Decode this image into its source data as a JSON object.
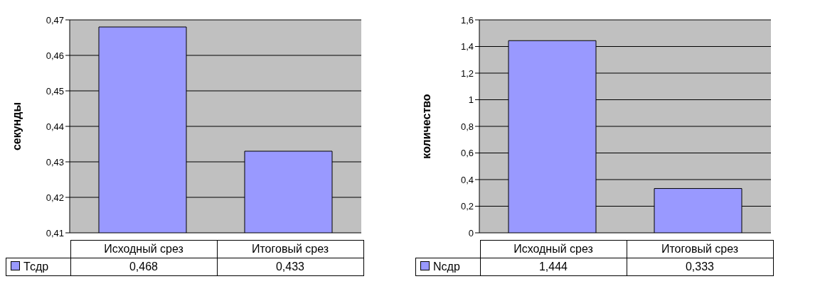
{
  "chart_data": [
    {
      "type": "bar",
      "ylabel": "секунды",
      "categories": [
        "Исходный срез",
        "Итоговый срез"
      ],
      "series": [
        {
          "name": "Тсдр",
          "color": "#9999ff",
          "values": [
            0.468,
            0.433
          ],
          "value_labels": [
            "0,468",
            "0,433"
          ]
        }
      ],
      "ylim": [
        0.41,
        0.47
      ],
      "yticks": [
        {
          "value": 0.41,
          "label": "0,41"
        },
        {
          "value": 0.42,
          "label": "0,42"
        },
        {
          "value": 0.43,
          "label": "0,43"
        },
        {
          "value": 0.44,
          "label": "0,44"
        },
        {
          "value": 0.45,
          "label": "0,45"
        },
        {
          "value": 0.46,
          "label": "0,46"
        },
        {
          "value": 0.47,
          "label": "0,47"
        }
      ],
      "grid": "y",
      "legend": "bottom left"
    },
    {
      "type": "bar",
      "ylabel": "количество",
      "categories": [
        "Исходный срез",
        "Итоговый срез"
      ],
      "series": [
        {
          "name": "Nсдр",
          "color": "#9999ff",
          "values": [
            1.444,
            0.333
          ],
          "value_labels": [
            "1,444",
            "0,333"
          ]
        }
      ],
      "ylim": [
        0,
        1.6
      ],
      "yticks": [
        {
          "value": 0,
          "label": "0"
        },
        {
          "value": 0.2,
          "label": "0,2"
        },
        {
          "value": 0.4,
          "label": "0,4"
        },
        {
          "value": 0.6,
          "label": "0,6"
        },
        {
          "value": 0.8,
          "label": "0,8"
        },
        {
          "value": 1,
          "label": "1"
        },
        {
          "value": 1.2,
          "label": "1,2"
        },
        {
          "value": 1.4,
          "label": "1,4"
        },
        {
          "value": 1.6,
          "label": "1,6"
        }
      ],
      "grid": "y",
      "legend": "bottom left"
    }
  ]
}
